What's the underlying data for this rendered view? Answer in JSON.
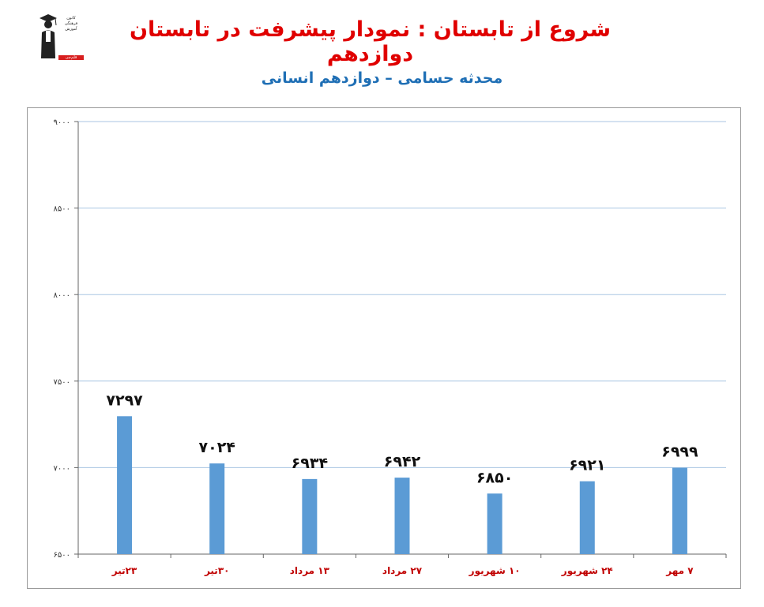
{
  "logo": {
    "lines": [
      "کانون",
      "فرهنگی",
      "آموزش"
    ],
    "tag": "قلم‌چی"
  },
  "title": "شروع از تابستان : نمودار پیشرفت در تابستان دوازدهم",
  "subtitle": "محدثه حسامی – دوازدهم انسانی",
  "colors": {
    "bar": "#5b9bd5",
    "gridline": "#a9c6e3",
    "title": "#e00000",
    "subtitle": "#1f6fb5",
    "xtick": "#c00000"
  },
  "chart_data": {
    "type": "bar",
    "categories": [
      "۲۳تیر",
      "۳۰تیر",
      "۱۳ مرداد",
      "۲۷ مرداد",
      "۱۰ شهریور",
      "۲۴ شهریور",
      "۷ مهر"
    ],
    "values": [
      7297,
      7024,
      6934,
      6942,
      6850,
      6921,
      6999
    ],
    "data_labels": [
      "۷۲۹۷",
      "۷۰۲۴",
      "۶۹۳۴",
      "۶۹۴۲",
      "۶۸۵۰",
      "۶۹۲۱",
      "۶۹۹۹"
    ],
    "ylim": [
      6500,
      9000
    ],
    "yticks": [
      6500,
      7000,
      7500,
      8000,
      8500,
      9000
    ],
    "ytick_labels": [
      "۶۵۰۰",
      "۷۰۰۰",
      "۷۵۰۰",
      "۸۰۰۰",
      "۸۵۰۰",
      "۹۰۰۰"
    ],
    "grid": true,
    "legend": "none"
  }
}
